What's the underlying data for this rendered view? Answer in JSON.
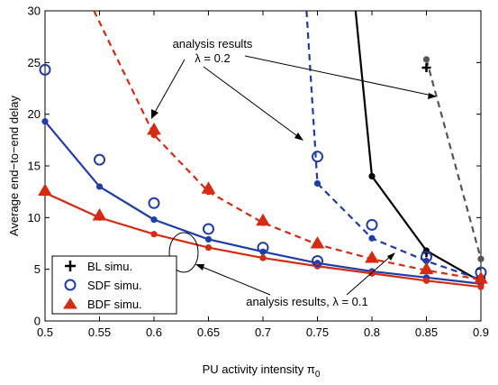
{
  "chart_data": {
    "type": "line",
    "xlabel": "PU activity intensity",
    "xlabel_symbol": "π",
    "xlabel_subscript": "0",
    "ylabel": "Average end−to−end delay",
    "xlim": [
      0.5,
      0.9
    ],
    "ylim": [
      0,
      30
    ],
    "xticks": [
      0.5,
      0.55,
      0.6,
      0.65,
      0.7,
      0.75,
      0.8,
      0.85,
      0.9
    ],
    "xtick_labels": [
      "0.5",
      "0.55",
      "0.6",
      "0.65",
      "0.7",
      "0.75",
      "0.8",
      "0.85",
      "0.9"
    ],
    "yticks": [
      0,
      5,
      10,
      15,
      20,
      25,
      30
    ],
    "ytick_labels": [
      "0",
      "5",
      "10",
      "15",
      "20",
      "25",
      "30"
    ],
    "grid": false,
    "legend_position": "bottom-left",
    "legend": [
      {
        "label": "BL simu.",
        "marker": "plus",
        "color": "#000000"
      },
      {
        "label": "SDF simu.",
        "marker": "circle",
        "color": "#1f3ca8"
      },
      {
        "label": "BDF simu.",
        "marker": "triangle",
        "color": "#d62a12"
      }
    ],
    "lines": [
      {
        "group": "BL",
        "lambda": "0.2",
        "style": "dashed",
        "color": "#555555",
        "x": [
          0.85,
          0.9
        ],
        "y": [
          25.3,
          6.0
        ],
        "point_markers": "dot",
        "clip_top": false
      },
      {
        "group": "BL",
        "lambda": "0.1",
        "style": "solid",
        "color": "#000000",
        "x": [
          0.785,
          0.8,
          0.85,
          0.9
        ],
        "y": [
          30.0,
          14.0,
          6.8,
          3.8
        ],
        "point_markers": "dot",
        "first_point_marker": false
      },
      {
        "group": "SDF",
        "lambda": "0.2",
        "style": "dashed",
        "color": "#1f3ca8",
        "x": [
          0.74,
          0.75,
          0.8,
          0.85,
          0.9
        ],
        "y": [
          30.0,
          13.3,
          8.0,
          5.8,
          4.0
        ],
        "point_markers": "dot",
        "first_point_marker": false
      },
      {
        "group": "SDF",
        "lambda": "0.1",
        "style": "solid",
        "color": "#1f3ca8",
        "x": [
          0.5,
          0.55,
          0.6,
          0.65,
          0.7,
          0.75,
          0.8,
          0.85,
          0.9
        ],
        "y": [
          19.3,
          13.0,
          9.8,
          7.9,
          6.7,
          5.6,
          4.8,
          4.2,
          3.6
        ],
        "point_markers": "dot"
      },
      {
        "group": "BDF",
        "lambda": "0.2",
        "style": "dashed",
        "color": "#d62a12",
        "x": [
          0.545,
          0.6,
          0.65,
          0.7,
          0.75,
          0.8,
          0.85,
          0.9
        ],
        "y": [
          30.0,
          18.0,
          12.5,
          9.5,
          7.4,
          6.0,
          4.9,
          4.0
        ],
        "point_markers": "dot",
        "first_point_marker": false
      },
      {
        "group": "BDF",
        "lambda": "0.1",
        "style": "solid",
        "color": "#d62a12",
        "x": [
          0.5,
          0.55,
          0.6,
          0.65,
          0.7,
          0.75,
          0.8,
          0.85,
          0.9
        ],
        "y": [
          12.4,
          10.0,
          8.4,
          7.1,
          6.1,
          5.3,
          4.6,
          3.9,
          3.3
        ],
        "point_markers": "dot"
      }
    ],
    "simulations": [
      {
        "series": "BL simu.",
        "marker": "plus",
        "color": "#000000",
        "x": [
          0.85,
          0.85,
          0.9
        ],
        "y": [
          24.5,
          6.6,
          4.2
        ]
      },
      {
        "series": "SDF simu.",
        "marker": "circle",
        "color": "#1f3ca8",
        "x": [
          0.5,
          0.55,
          0.6,
          0.65,
          0.7,
          0.75,
          0.75,
          0.8,
          0.85,
          0.9
        ],
        "y": [
          24.3,
          15.6,
          11.4,
          8.9,
          7.1,
          5.8,
          15.9,
          9.3,
          6.2,
          4.7
        ]
      },
      {
        "series": "BDF simu.",
        "marker": "triangle",
        "color": "#d62a12",
        "x": [
          0.5,
          0.55,
          0.6,
          0.65,
          0.7,
          0.75,
          0.8,
          0.85,
          0.9
        ],
        "y": [
          12.6,
          10.2,
          18.5,
          12.8,
          9.7,
          7.5,
          6.1,
          5.0,
          4.1
        ]
      }
    ],
    "annotations": [
      {
        "text_lines": [
          "analysis results",
          "λ = 0.2"
        ],
        "anchor": "top-center"
      },
      {
        "text_lines": [
          "analysis results, λ = 0.1"
        ],
        "anchor": "bottom-center"
      }
    ]
  }
}
